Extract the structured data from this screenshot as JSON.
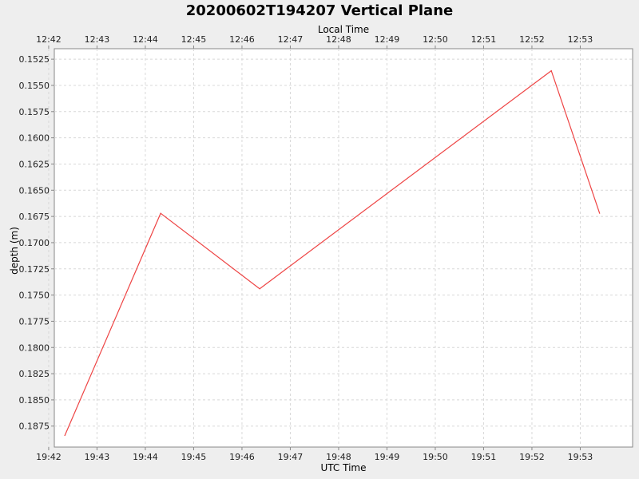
{
  "chart_data": {
    "type": "line",
    "title": "20200602T194207 Vertical Plane",
    "xlabel": "UTC Time",
    "x2label": "Local Time",
    "ylabel": "depth (m)",
    "ylim": [
      0.1515,
      0.1895
    ],
    "y_inverted": true,
    "xlim": [
      "19:42:07",
      "19:54:05"
    ],
    "grid": true,
    "y_ticks": [
      "0.1525",
      "0.1550",
      "0.1575",
      "0.1600",
      "0.1625",
      "0.1650",
      "0.1675",
      "0.1700",
      "0.1725",
      "0.1750",
      "0.1775",
      "0.1800",
      "0.1825",
      "0.1850",
      "0.1875"
    ],
    "x_ticks": [
      "19:42",
      "19:43",
      "19:44",
      "19:45",
      "19:46",
      "19:47",
      "19:48",
      "19:49",
      "19:50",
      "19:51",
      "19:52",
      "19:53"
    ],
    "x2_ticks": [
      "12:42",
      "12:43",
      "12:44",
      "12:45",
      "12:46",
      "12:47",
      "12:48",
      "12:49",
      "12:50",
      "12:51",
      "12:52",
      "12:53"
    ],
    "series": [
      {
        "color": "#ee4444",
        "points": [
          {
            "t": "19:42:20",
            "depth": 0.1884
          },
          {
            "t": "19:44:19",
            "depth": 0.1672
          },
          {
            "t": "19:46:22",
            "depth": 0.1744
          },
          {
            "t": "19:52:24",
            "depth": 0.1536
          },
          {
            "t": "19:53:24",
            "depth": 0.1672
          }
        ]
      }
    ]
  }
}
